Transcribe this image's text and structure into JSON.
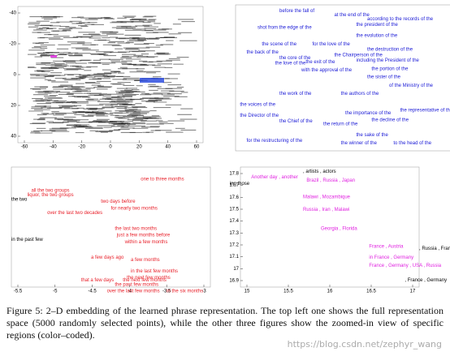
{
  "panels": [
    {
      "xticks": [
        -60,
        -40,
        -20,
        0,
        20,
        40,
        60
      ],
      "yticks": [
        -40,
        -20,
        0,
        20,
        40
      ],
      "labels": []
    },
    {
      "xticks": [],
      "yticks": [],
      "labels": [
        "before the fall of",
        "at the end of the",
        "according to the records of the",
        "the president of the",
        "shot from the edge of the",
        "the evolution of the",
        "the scene of the",
        "for the love of the",
        "the destruction of the",
        "the back of the",
        "the core of the",
        "the Chairperson of the",
        "the love of the",
        "the exit of the",
        "including the President of the",
        "with the approval of the",
        "the portion of the",
        "the sister of the",
        "of the Ministry of the",
        "the work of the",
        "the authors of the",
        "the voices of the",
        "the Director of the",
        "the Chief of the",
        "the return of the",
        "the importance of the",
        "the decline of the",
        "the representative of the",
        "for the restructuring of the",
        "the sake of the",
        "to the head of the",
        "the winner of the"
      ]
    },
    {
      "xticks": [
        -5.5,
        -5,
        -4.5,
        -4,
        -3.5,
        -3
      ],
      "yticks": [],
      "labels": [
        "one to three months",
        "all the two groups",
        "liquor, the two groups",
        "the two",
        "two days before",
        "for nearly two months",
        "over the last two decades",
        "the last two months",
        "just a few months before",
        "within a few months",
        "a few days ago",
        "a few months",
        "in the last few months",
        "the next few months",
        "the next few months",
        "that a few days",
        "the past few months",
        "over the last few months",
        "in the six months",
        "in the past few"
      ]
    },
    {
      "xticks": [
        15,
        15.5,
        16,
        16.5,
        17
      ],
      "yticks": [
        17.8,
        17.7,
        17.6,
        17.5,
        17.4,
        17.3,
        17.2,
        17.1,
        17,
        16.9
      ],
      "labels": [
        "Another day , another",
        ", artists , actors",
        "Brazil , Russia , Japan",
        "Malawi , Mozambique",
        "Russia , Iran , Malawi",
        "Georgia , Florida",
        "France , Austria",
        ", Russia , France",
        "in France , Germany",
        "France , Germany , USA , Russia",
        ", France , Germany",
        "ing those"
      ]
    }
  ],
  "caption": "Figure 5: 2–D embedding of the learned phrase representation. The top left one shows the full representation space (5000 randomly selected points), while the other three figures show the zoomed-in view of specific regions (color–coded).",
  "watermark": "https://blog.csdn.net/zephyr_wang"
}
